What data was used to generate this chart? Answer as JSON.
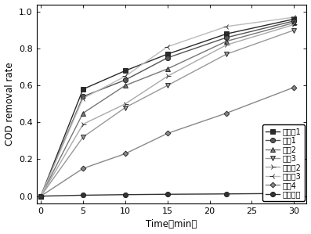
{
  "x": [
    0,
    5,
    10,
    15,
    22,
    30
  ],
  "series": [
    {
      "label": "实验兣1",
      "values": [
        0.0,
        0.58,
        0.68,
        0.77,
        0.88,
        0.96
      ],
      "color": "#2b2b2b",
      "marker": "s",
      "markersize": 4.5,
      "linewidth": 1.0
    },
    {
      "label": "对比1",
      "values": [
        0.0,
        0.54,
        0.63,
        0.75,
        0.86,
        0.95
      ],
      "color": "#555555",
      "marker": "o",
      "markersize": 4.5,
      "linewidth": 1.0
    },
    {
      "label": "对比2",
      "values": [
        0.0,
        0.45,
        0.6,
        0.69,
        0.84,
        0.94
      ],
      "color": "#777777",
      "marker": "^",
      "markersize": 4.5,
      "linewidth": 1.0
    },
    {
      "label": "对比3",
      "values": [
        0.0,
        0.32,
        0.48,
        0.6,
        0.77,
        0.9
      ],
      "color": "#999999",
      "marker": "v",
      "markersize": 4.5,
      "linewidth": 1.0
    },
    {
      "label": "实验兣2",
      "values": [
        0.0,
        0.39,
        0.5,
        0.65,
        0.82,
        0.93
      ],
      "color": "#aaaaaa",
      "marker": "4",
      "markersize": 5.5,
      "linewidth": 1.0
    },
    {
      "label": "实验兣3",
      "values": [
        0.0,
        0.53,
        0.65,
        0.81,
        0.92,
        0.97
      ],
      "color": "#bbbbbb",
      "marker": "3",
      "markersize": 5.5,
      "linewidth": 1.0
    },
    {
      "label": "对比4",
      "values": [
        0.0,
        0.15,
        0.23,
        0.34,
        0.45,
        0.59
      ],
      "color": "#888888",
      "marker": "D",
      "markersize": 3.5,
      "linewidth": 1.0
    },
    {
      "label": "空白对照",
      "values": [
        0.0,
        0.005,
        0.008,
        0.01,
        0.012,
        0.015
      ],
      "color": "#333333",
      "marker": "o",
      "markersize": 4.5,
      "linewidth": 1.0
    }
  ],
  "xlabel": "Time（min）",
  "ylabel": "COD removal rate",
  "xlim": [
    -0.5,
    31.5
  ],
  "ylim": [
    -0.04,
    1.04
  ],
  "xticks": [
    0,
    5,
    10,
    15,
    20,
    25,
    30
  ],
  "yticks": [
    0.0,
    0.2,
    0.4,
    0.6,
    0.8,
    1.0
  ],
  "figsize": [
    3.97,
    2.99
  ],
  "dpi": 100
}
